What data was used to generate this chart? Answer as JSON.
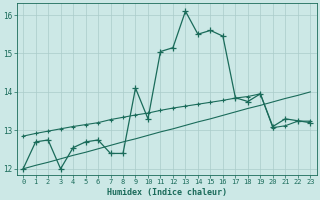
{
  "xlabel": "Humidex (Indice chaleur)",
  "background_color": "#cce8e6",
  "grid_color": "#aaccca",
  "line_color": "#1a6b5a",
  "xlim": [
    0,
    23
  ],
  "ylim": [
    11.85,
    16.3
  ],
  "xticks": [
    0,
    1,
    2,
    3,
    4,
    5,
    6,
    7,
    8,
    9,
    10,
    11,
    12,
    13,
    14,
    15,
    16,
    17,
    18,
    19,
    20,
    21,
    22,
    23
  ],
  "yticks": [
    12,
    13,
    14,
    15,
    16
  ],
  "line1_x": [
    0,
    1,
    2,
    3,
    4,
    5,
    6,
    7,
    8,
    9,
    10,
    11,
    12,
    13,
    14,
    15,
    16,
    17,
    18,
    19,
    20,
    21,
    22,
    23
  ],
  "line1_y": [
    12.0,
    12.7,
    12.75,
    12.0,
    12.55,
    12.7,
    12.75,
    12.4,
    12.4,
    14.1,
    13.3,
    15.05,
    15.15,
    16.1,
    15.5,
    15.6,
    15.45,
    13.85,
    13.75,
    13.95,
    13.1,
    13.3,
    13.25,
    13.2
  ],
  "line2_x": [
    0,
    1,
    2,
    3,
    4,
    5,
    6,
    7,
    8,
    9,
    10,
    11,
    12,
    13,
    14,
    15,
    16,
    17,
    18,
    19,
    20,
    21,
    22,
    23
  ],
  "line2_y": [
    12.85,
    12.92,
    12.98,
    13.04,
    13.1,
    13.15,
    13.2,
    13.28,
    13.34,
    13.4,
    13.45,
    13.52,
    13.58,
    13.63,
    13.68,
    13.73,
    13.78,
    13.84,
    13.88,
    13.95,
    13.07,
    13.12,
    13.24,
    13.24
  ],
  "line3_x": [
    0,
    1,
    2,
    3,
    4,
    5,
    6,
    7,
    8,
    9,
    10,
    11,
    12,
    13,
    14,
    15,
    16,
    17,
    18,
    19,
    20,
    21,
    22,
    23
  ],
  "line3_y": [
    12.0,
    12.09,
    12.17,
    12.26,
    12.35,
    12.43,
    12.52,
    12.61,
    12.7,
    12.78,
    12.87,
    12.96,
    13.04,
    13.13,
    13.22,
    13.3,
    13.39,
    13.48,
    13.57,
    13.65,
    13.74,
    13.83,
    13.91,
    14.0
  ]
}
